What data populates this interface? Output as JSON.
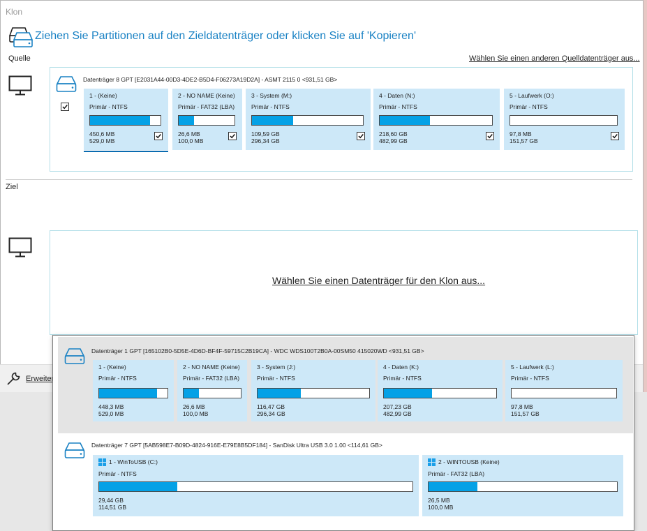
{
  "window": {
    "title": "Klon",
    "header": "Ziehen Sie Partitionen auf den Zieldatenträger oder klicken Sie auf 'Kopieren'",
    "source_label": "Quelle",
    "other_source_link": "Wählen Sie einen anderen Quelldatenträger aus...",
    "target_label": "Ziel",
    "choose_target_link": "Wählen Sie einen Datenträger für den Klon aus...",
    "advanced_label": "Erweiter"
  },
  "source_disk": {
    "header": "Datenträger 8 GPT [E2031A44-00D3-4DE2-B5D4-F06273A19D2A] - ASMT     2115           0  <931,51 GB>",
    "icon": "disk-icon",
    "checked": true,
    "partitions": [
      {
        "name": "1 -  (Keine)",
        "type": "Primär - NTFS",
        "used": "450,6 MB",
        "total": "529,0 MB",
        "fill": 0.85,
        "checked": true
      },
      {
        "name": "2 - NO NAME (Keine)",
        "type": "Primär - FAT32 (LBA)",
        "used": "26,6 MB",
        "total": "100,0 MB",
        "fill": 0.27,
        "checked": true
      },
      {
        "name": "3 - System (M:)",
        "type": "Primär - NTFS",
        "used": "109,59 GB",
        "total": "296,34 GB",
        "fill": 0.37,
        "checked": true
      },
      {
        "name": "4 - Daten (N:)",
        "type": "Primär - NTFS",
        "used": "218,60 GB",
        "total": "482,99 GB",
        "fill": 0.45,
        "checked": true
      },
      {
        "name": "5 - Laufwerk (O:)",
        "type": "Primär - NTFS",
        "used": "97,8 MB",
        "total": "151,57 GB",
        "fill": 0.0,
        "checked": true
      }
    ]
  },
  "popup_disks": [
    {
      "header": "Datenträger 1 GPT [165102B0-5D5E-4D6D-BF4F-59715C2B19CA] - WDC  WDS100T2B0A-00SM50 415020WD  <931,51 GB>",
      "partitions": [
        {
          "name": "1 -  (Keine)",
          "type": "Primär - NTFS",
          "used": "448,3 MB",
          "total": "529,0 MB",
          "fill": 0.85
        },
        {
          "name": "2 - NO NAME (Keine)",
          "type": "Primär - FAT32 (LBA)",
          "used": "26,6 MB",
          "total": "100,0 MB",
          "fill": 0.27
        },
        {
          "name": "3 - System (J:)",
          "type": "Primär - NTFS",
          "used": "116,47 GB",
          "total": "296,34 GB",
          "fill": 0.39
        },
        {
          "name": "4 - Daten (K:)",
          "type": "Primär - NTFS",
          "used": "207,23 GB",
          "total": "482,99 GB",
          "fill": 0.43
        },
        {
          "name": "5 - Laufwerk (L:)",
          "type": "Primär - NTFS",
          "used": "97,8 MB",
          "total": "151,57 GB",
          "fill": 0.0
        }
      ]
    },
    {
      "header": "Datenträger 7 GPT [5AB598E7-B09D-4824-916E-E79E8B5DF184] - SanDisk Ultra USB 3.0 1.00  <114,61 GB>",
      "partitions": [
        {
          "name": "1 - WinToUSB (C:)",
          "type": "Primär - NTFS",
          "used": "29,44 GB",
          "total": "114,51 GB",
          "fill": 0.25,
          "windows": true
        },
        {
          "name": "2 - WINTOUSB (Keine)",
          "type": "Primär - FAT32 (LBA)",
          "used": "26,5 MB",
          "total": "100,0 MB",
          "fill": 0.26,
          "windows": true
        }
      ]
    }
  ],
  "colors": {
    "accent": "#1a82c4",
    "bar_fill": "#04a1e6",
    "partition_bg": "#cde8f8",
    "box_border": "#b3dfe8"
  }
}
